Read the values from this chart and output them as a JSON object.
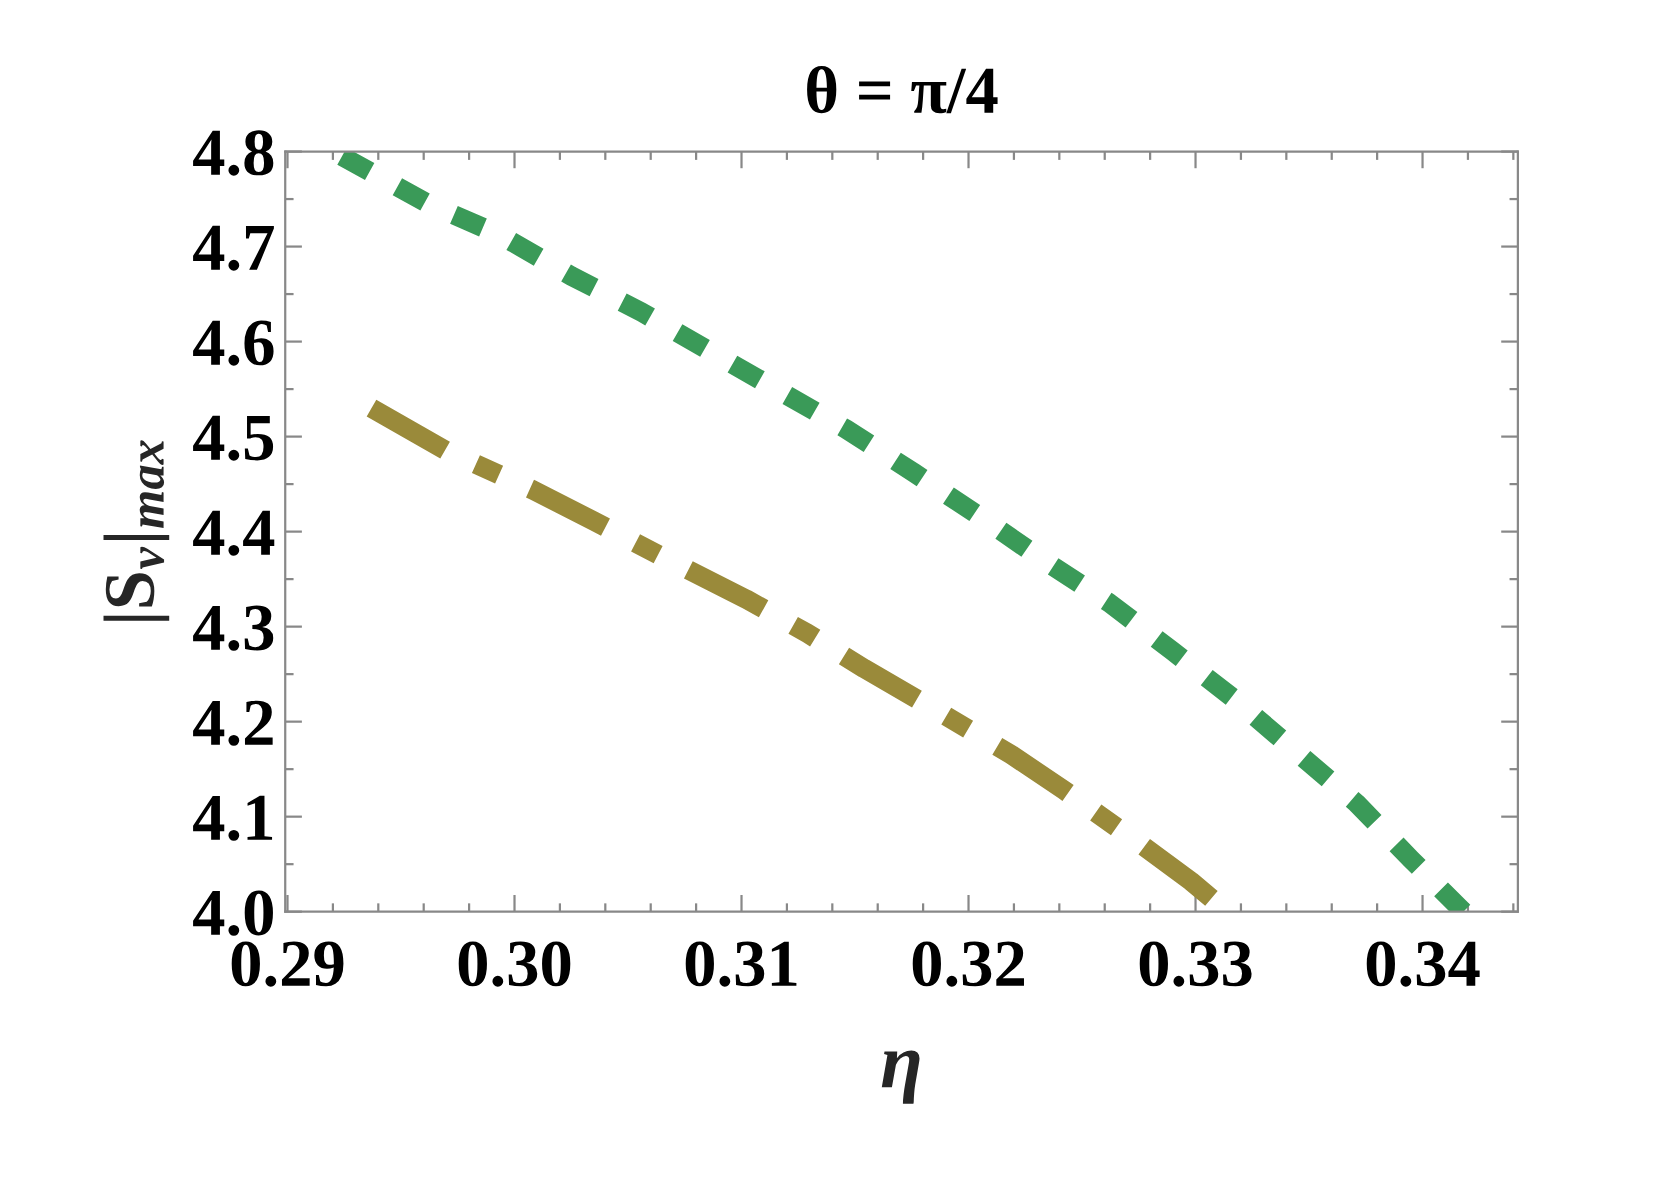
{
  "chart_data": {
    "type": "line",
    "title": "θ = π/4",
    "xlabel": "η",
    "ylabel": "|S$_{v}$|$_{max}$",
    "xlim": [
      0.2899,
      0.3442
    ],
    "ylim": [
      4.0,
      4.8
    ],
    "xticks": [
      {
        "value": 0.29,
        "label": "0.29"
      },
      {
        "value": 0.3,
        "label": "0.30"
      },
      {
        "value": 0.31,
        "label": "0.31"
      },
      {
        "value": 0.32,
        "label": "0.32"
      },
      {
        "value": 0.33,
        "label": "0.33"
      },
      {
        "value": 0.34,
        "label": "0.34"
      }
    ],
    "yticks": [
      {
        "value": 4.0,
        "label": "4.0"
      },
      {
        "value": 4.1,
        "label": "4.1"
      },
      {
        "value": 4.2,
        "label": "4.2"
      },
      {
        "value": 4.3,
        "label": "4.3"
      },
      {
        "value": 4.4,
        "label": "4.4"
      },
      {
        "value": 4.5,
        "label": "4.5"
      },
      {
        "value": 4.6,
        "label": "4.6"
      },
      {
        "value": 4.7,
        "label": "4.7"
      },
      {
        "value": 4.8,
        "label": "4.8"
      }
    ],
    "grid": false,
    "legend": false,
    "series": [
      {
        "color": "#3a9a58",
        "line_style": "dotted",
        "x": [
          0.2924,
          0.2962,
          0.2993,
          0.3025,
          0.3056,
          0.3086,
          0.3116,
          0.3146,
          0.3176,
          0.3205,
          0.3233,
          0.3262,
          0.329,
          0.3317,
          0.3344,
          0.3371,
          0.3395,
          0.3418
        ],
        "values": [
          4.795,
          4.745,
          4.713,
          4.669,
          4.631,
          4.59,
          4.549,
          4.508,
          4.462,
          4.416,
          4.37,
          4.325,
          4.274,
          4.224,
          4.169,
          4.114,
          4.055,
          4.0
        ]
      },
      {
        "color": "#9a8a3a",
        "line_style": "dashdot",
        "x": [
          0.2937,
          0.297,
          0.3008,
          0.3035,
          0.3064,
          0.3102,
          0.3129,
          0.3154,
          0.319,
          0.3219,
          0.3242,
          0.3277,
          0.3298,
          0.3307
        ],
        "values": [
          4.53,
          4.485,
          4.444,
          4.411,
          4.375,
          4.329,
          4.293,
          4.256,
          4.206,
          4.165,
          4.128,
          4.069,
          4.032,
          4.014
        ]
      }
    ]
  }
}
